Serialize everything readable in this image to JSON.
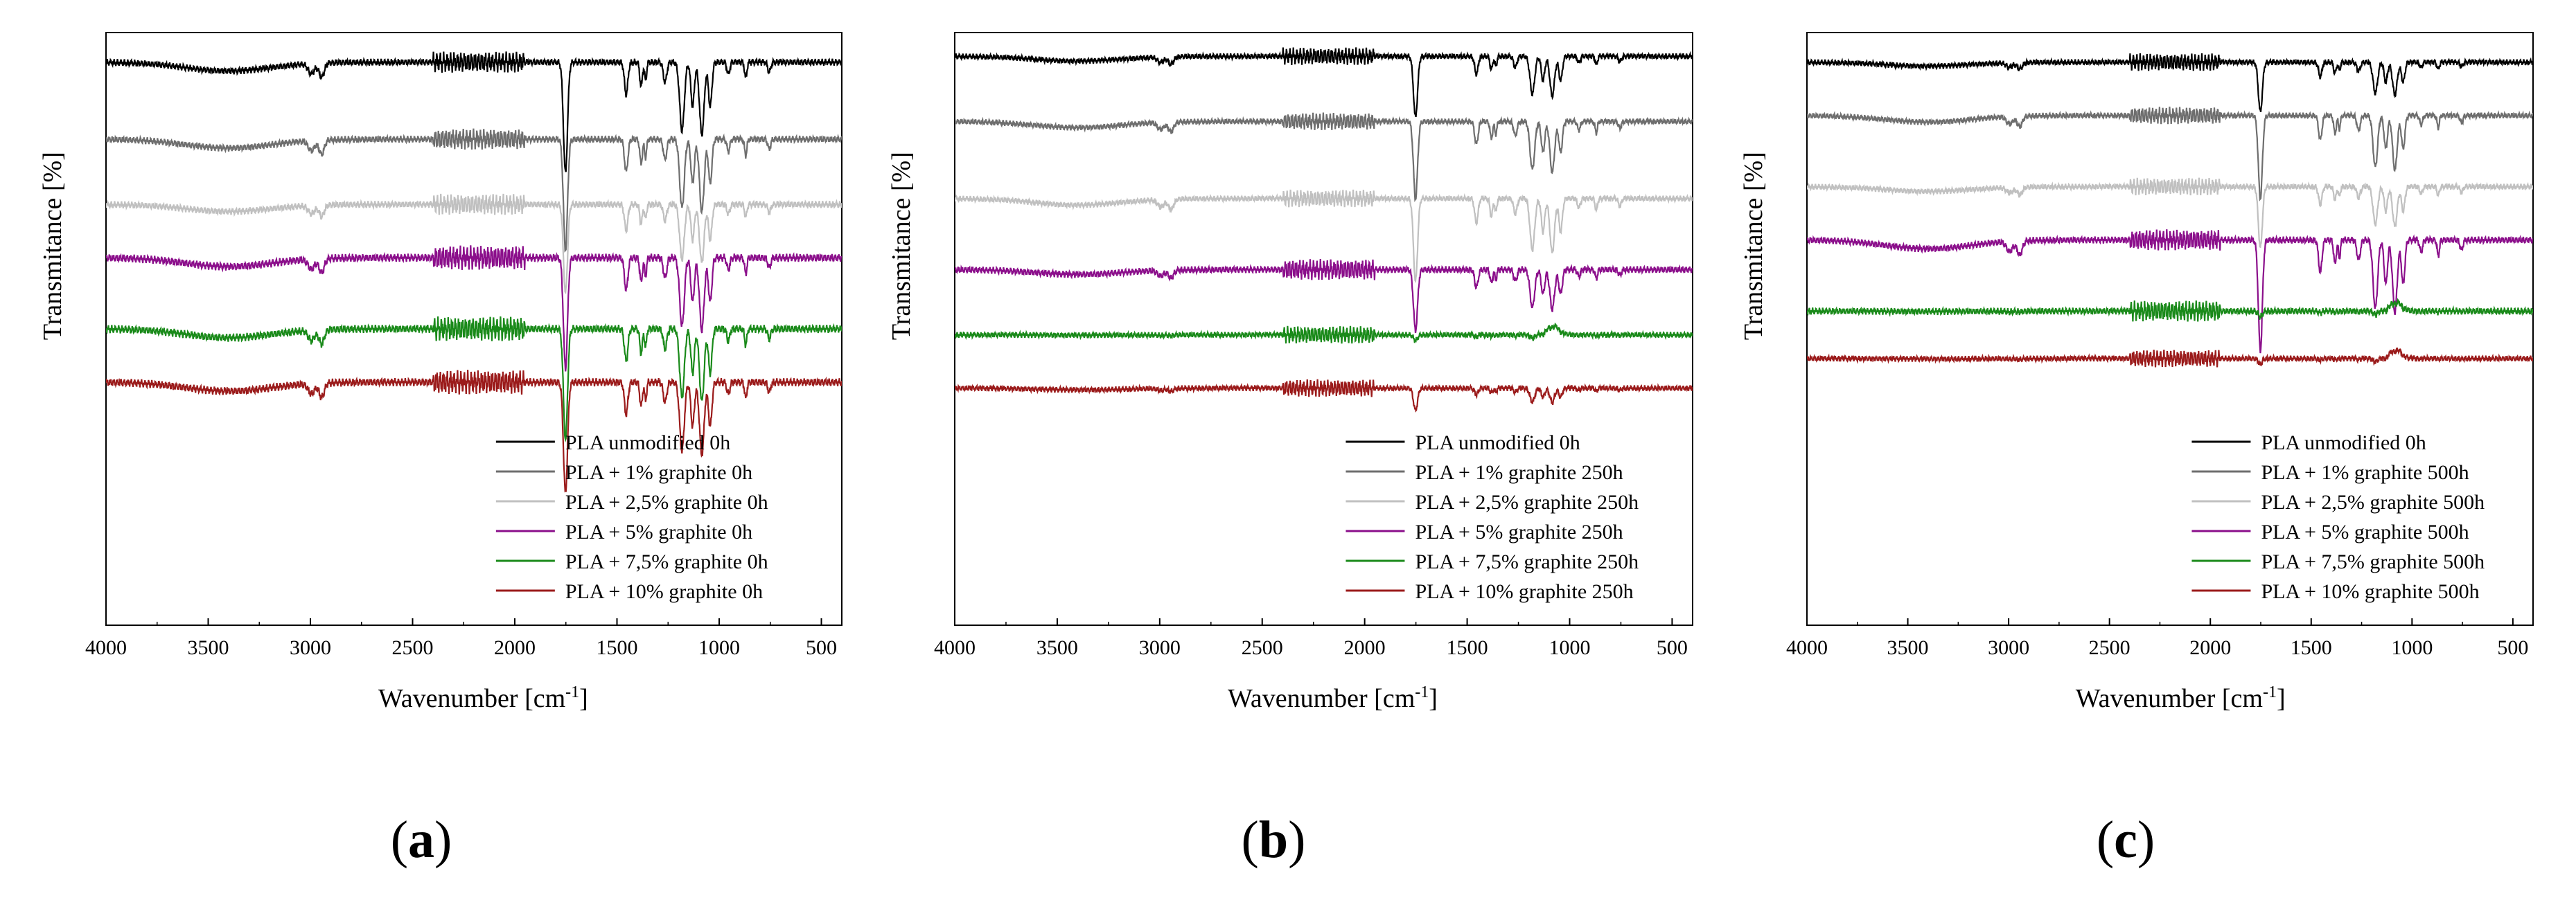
{
  "figure": {
    "panel_labels": [
      {
        "open": "(",
        "letter": "a",
        "close": ")"
      },
      {
        "open": "(",
        "letter": "b",
        "close": ")"
      },
      {
        "open": "(",
        "letter": "c",
        "close": ")"
      }
    ]
  },
  "chart_data": [
    {
      "type": "line",
      "panel": "a",
      "xlabel": "Wavenumber [cm",
      "xlabel_sup": "-1",
      "xlabel_end": "]",
      "ylabel": "Transmitance [%]",
      "xlim": [
        4000,
        400
      ],
      "ylim": [
        0,
        100
      ],
      "x_ticks": [
        4000,
        3500,
        3000,
        2500,
        2000,
        1500,
        1000,
        500
      ],
      "y_ticks": [],
      "legend_position": "bottom-right",
      "series": [
        {
          "name": "PLA unmodified 0h",
          "color": "#000000",
          "baseline": 95,
          "depth": 1.0,
          "noise": 0.6
        },
        {
          "name": "PLA + 1% graphite 0h",
          "color": "#6e6e6e",
          "baseline": 82,
          "depth": 1.0,
          "noise": 0.6
        },
        {
          "name": "PLA + 2,5% graphite 0h",
          "color": "#c0c0c0",
          "baseline": 71,
          "depth": 0.8,
          "noise": 0.6
        },
        {
          "name": "PLA + 5% graphite 0h",
          "color": "#8b0f8b",
          "baseline": 62,
          "depth": 1.0,
          "noise": 0.7
        },
        {
          "name": "PLA + 7,5% graphite 0h",
          "color": "#1a8a1a",
          "baseline": 50,
          "depth": 1.0,
          "noise": 0.7
        },
        {
          "name": "PLA + 10% graphite 0h",
          "color": "#9b1b1b",
          "baseline": 41,
          "depth": 1.0,
          "noise": 0.7
        }
      ]
    },
    {
      "type": "line",
      "panel": "b",
      "xlabel": "Wavenumber [cm",
      "xlabel_sup": "-1",
      "xlabel_end": "]",
      "ylabel": "Transmitance [%]",
      "xlim": [
        4000,
        400
      ],
      "ylim": [
        0,
        100
      ],
      "x_ticks": [
        4000,
        3500,
        3000,
        2500,
        2000,
        1500,
        1000,
        500
      ],
      "y_ticks": [],
      "legend_position": "bottom-right",
      "series": [
        {
          "name": "PLA unmodified 0h",
          "color": "#000000",
          "baseline": 96,
          "depth": 0.55,
          "noise": 0.5
        },
        {
          "name": "PLA + 1% graphite 250h",
          "color": "#6e6e6e",
          "baseline": 85,
          "depth": 0.7,
          "noise": 0.5
        },
        {
          "name": "PLA + 2,5% graphite 250h",
          "color": "#c0c0c0",
          "baseline": 72,
          "depth": 0.75,
          "noise": 0.5
        },
        {
          "name": "PLA + 5% graphite 250h",
          "color": "#8b0f8b",
          "baseline": 60,
          "depth": 0.55,
          "noise": 0.6
        },
        {
          "name": "PLA + 7,5% graphite 250h",
          "color": "#1a8a1a",
          "baseline": 49,
          "depth": 0.05,
          "noise": 0.5
        },
        {
          "name": "PLA + 10% graphite 250h",
          "color": "#9b1b1b",
          "baseline": 40,
          "depth": 0.2,
          "noise": 0.5
        }
      ]
    },
    {
      "type": "line",
      "panel": "c",
      "xlabel": "Wavenumber [cm",
      "xlabel_sup": "-1",
      "xlabel_end": "]",
      "ylabel": "Transmitance [%]",
      "xlim": [
        4000,
        400
      ],
      "ylim": [
        0,
        100
      ],
      "x_ticks": [
        4000,
        3500,
        3000,
        2500,
        2000,
        1500,
        1000,
        500
      ],
      "y_ticks": [],
      "legend_position": "bottom-right",
      "series": [
        {
          "name": "PLA unmodified 0h",
          "color": "#000000",
          "baseline": 95,
          "depth": 0.45,
          "noise": 0.5
        },
        {
          "name": "PLA + 1% graphite 500h",
          "color": "#6e6e6e",
          "baseline": 86,
          "depth": 0.75,
          "noise": 0.5
        },
        {
          "name": "PLA + 2,5% graphite 500h",
          "color": "#c0c0c0",
          "baseline": 74,
          "depth": 0.55,
          "noise": 0.5
        },
        {
          "name": "PLA + 5% graphite 500h",
          "color": "#8b0f8b",
          "baseline": 65,
          "depth": 1.0,
          "noise": 0.6
        },
        {
          "name": "PLA + 7,5% graphite 500h",
          "color": "#1a8a1a",
          "baseline": 53,
          "depth": 0.05,
          "noise": 0.6
        },
        {
          "name": "PLA + 10% graphite 500h",
          "color": "#9b1b1b",
          "baseline": 45,
          "depth": 0.05,
          "noise": 0.5
        }
      ]
    }
  ]
}
